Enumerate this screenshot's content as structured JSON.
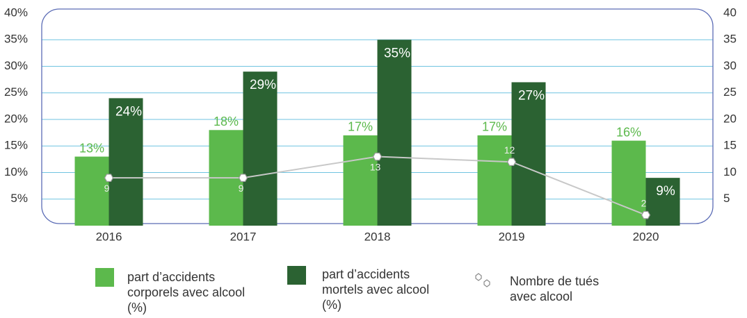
{
  "chart_data": {
    "type": "bar",
    "categories": [
      "2016",
      "2017",
      "2018",
      "2019",
      "2020"
    ],
    "series": [
      {
        "name": "part d’accidents corporels avec alcool (%)",
        "color": "#5cb94c",
        "values": [
          13,
          18,
          17,
          17,
          16
        ],
        "value_labels": [
          "13%",
          "18%",
          "17%",
          "17%",
          "16%"
        ]
      },
      {
        "name": "part d’accidents mortels avec alcool (%)",
        "color": "#2b6232",
        "values": [
          24,
          29,
          35,
          27,
          9
        ],
        "value_labels": [
          "24%",
          "29%",
          "35%",
          "27%",
          "9%"
        ]
      },
      {
        "name": "Nombre de tués avec alcool",
        "type": "line",
        "axis": "y2",
        "color": "#c8c8c8",
        "values": [
          9,
          9,
          13,
          12,
          2
        ]
      }
    ],
    "ylim": [
      0,
      40
    ],
    "yticks": [
      {
        "value": 5,
        "label": "5%"
      },
      {
        "value": 10,
        "label": "10%"
      },
      {
        "value": 15,
        "label": "15%"
      },
      {
        "value": 20,
        "label": "20%"
      },
      {
        "value": 25,
        "label": "25%"
      },
      {
        "value": 30,
        "label": "30%"
      },
      {
        "value": 35,
        "label": "35%"
      },
      {
        "value": 40,
        "label": "40%"
      }
    ],
    "y2lim": [
      0,
      40
    ],
    "y2ticks": [
      5,
      10,
      15,
      20,
      25,
      30,
      35,
      40
    ],
    "grid": true
  }
}
